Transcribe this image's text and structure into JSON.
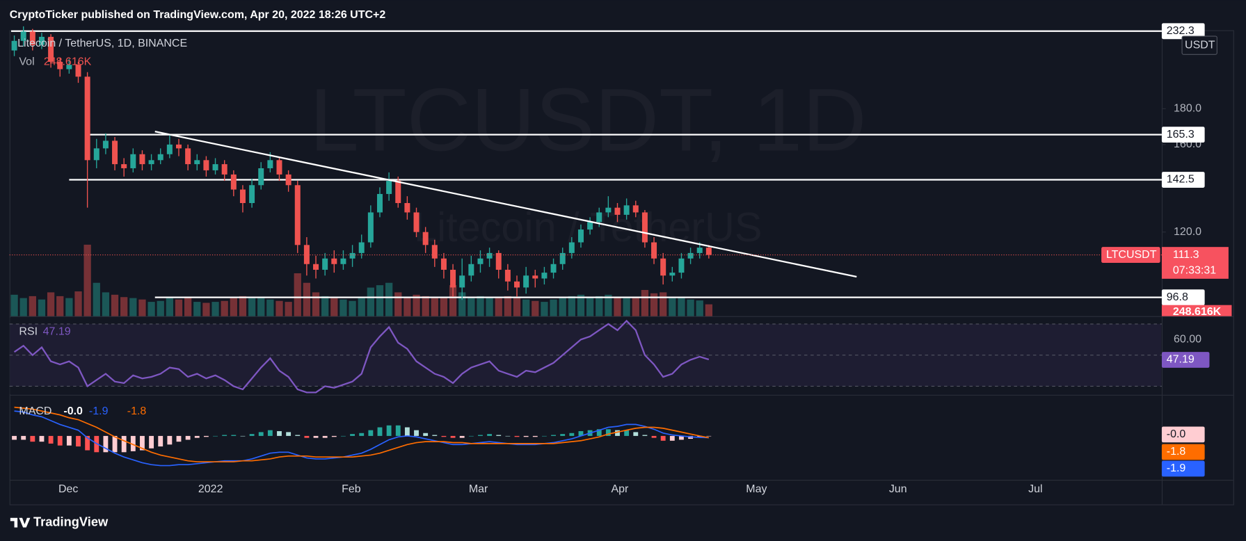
{
  "header": {
    "publisher": "CryptoTicker published on TradingView.com, Apr 20, 2022 18:26 UTC+2"
  },
  "footer": {
    "brand": "TradingView"
  },
  "chart_data": [
    {
      "type": "candlestick",
      "title": "Litecoin / TetherUS, 1D, BINANCE",
      "watermark": "LTCUSDT, 1D",
      "watermark_subtitle": "Litecoin / TetherUS",
      "currency": "USDT",
      "log_scale": true,
      "ylim": [
        91,
        233
      ],
      "yticks": [
        {
          "value": 120,
          "label": "120.0"
        },
        {
          "value": 160,
          "label": "160.0"
        },
        {
          "value": 180,
          "label": "180.0"
        }
      ],
      "x_labels": [
        "Dec",
        "2022",
        "Feb",
        "Mar",
        "Apr",
        "May",
        "Jun",
        "Jul"
      ],
      "up_color": "#26a69a",
      "down_color": "#ef5350",
      "open": [
        218,
        225,
        232,
        222,
        228,
        210,
        205,
        208,
        200,
        152,
        158,
        162,
        150,
        148,
        155,
        150,
        152,
        155,
        160,
        158,
        150,
        152,
        147,
        150,
        145,
        138,
        132,
        140,
        148,
        152,
        145,
        140,
        115,
        108,
        106,
        110,
        108,
        110,
        112,
        116,
        128,
        136,
        142,
        132,
        128,
        120,
        115,
        110,
        106,
        100,
        104,
        108,
        110,
        112,
        106,
        102,
        100,
        104,
        103,
        105,
        108,
        112,
        116,
        121,
        124,
        128,
        130,
        127,
        131,
        128,
        116,
        110,
        104,
        105,
        110,
        112,
        114
      ],
      "high": [
        229,
        236,
        234,
        231,
        230,
        213,
        212,
        210,
        203,
        163,
        166,
        164,
        153,
        158,
        157,
        155,
        158,
        165,
        163,
        160,
        155,
        154,
        153,
        152,
        147,
        140,
        143,
        151,
        156,
        153,
        147,
        142,
        118,
        111,
        112,
        113,
        113,
        115,
        119,
        131,
        139,
        146,
        144,
        135,
        130,
        122,
        117,
        112,
        108,
        110,
        111,
        113,
        114,
        113,
        108,
        104,
        107,
        106,
        107,
        110,
        114,
        118,
        123,
        126,
        130,
        135,
        132,
        134,
        133,
        129,
        118,
        112,
        107,
        112,
        114,
        116,
        115
      ],
      "low": [
        214,
        221,
        218,
        219,
        206,
        200,
        202,
        196,
        130,
        148,
        155,
        147,
        144,
        146,
        147,
        147,
        150,
        153,
        154,
        147,
        147,
        144,
        145,
        142,
        135,
        128,
        130,
        138,
        146,
        142,
        137,
        112,
        104,
        103,
        104,
        105,
        106,
        107,
        110,
        114,
        126,
        133,
        130,
        125,
        118,
        112,
        107,
        103,
        97,
        96,
        102,
        105,
        107,
        103,
        99,
        97,
        98,
        100,
        101,
        103,
        106,
        110,
        114,
        119,
        122,
        126,
        124,
        125,
        126,
        114,
        108,
        101,
        102,
        103,
        108,
        110,
        110
      ],
      "close": [
        225,
        232,
        222,
        228,
        210,
        205,
        208,
        200,
        152,
        158,
        162,
        150,
        148,
        155,
        150,
        152,
        155,
        160,
        158,
        150,
        152,
        147,
        150,
        145,
        138,
        132,
        140,
        148,
        152,
        145,
        140,
        115,
        108,
        106,
        110,
        108,
        110,
        112,
        116,
        128,
        136,
        142,
        132,
        128,
        120,
        115,
        110,
        106,
        100,
        104,
        108,
        110,
        112,
        106,
        102,
        100,
        104,
        103,
        105,
        108,
        112,
        116,
        121,
        124,
        128,
        130,
        127,
        131,
        128,
        116,
        110,
        104,
        105,
        110,
        112,
        114,
        111.3
      ],
      "levels": [
        232.3,
        165.3,
        142.5,
        96.8
      ],
      "trendline": [
        167,
        103.6
      ],
      "symbol": "LTCUSDT",
      "last_price": 111.3,
      "countdown": "07:33:31",
      "volume": {
        "name": "Vol",
        "last_label": "248.616K",
        "values": [
          450,
          380,
          420,
          350,
          500,
          420,
          380,
          520,
          1500,
          700,
          500,
          450,
          400,
          380,
          350,
          300,
          320,
          380,
          350,
          400,
          300,
          280,
          300,
          320,
          380,
          420,
          380,
          400,
          350,
          320,
          300,
          900,
          700,
          500,
          420,
          380,
          350,
          320,
          380,
          600,
          650,
          700,
          500,
          400,
          450,
          420,
          380,
          400,
          650,
          500,
          380,
          420,
          400,
          380,
          420,
          400,
          350,
          320,
          300,
          350,
          380,
          420,
          450,
          400,
          420,
          450,
          400,
          380,
          400,
          550,
          480,
          500,
          380,
          400,
          350,
          330,
          248.616
        ]
      }
    },
    {
      "type": "line",
      "title": "RSI",
      "ylim": [
        25,
        74
      ],
      "yticks": [
        {
          "value": 60,
          "label": "60.00"
        }
      ],
      "bands": [
        30,
        50,
        70
      ],
      "series": [
        {
          "color": "#7e57c2",
          "values": [
            52,
            56,
            50,
            55,
            46,
            44,
            46,
            42,
            30,
            34,
            38,
            33,
            32,
            37,
            35,
            36,
            38,
            42,
            41,
            36,
            38,
            35,
            37,
            34,
            30,
            28,
            35,
            42,
            48,
            40,
            36,
            28,
            26,
            26,
            30,
            29,
            31,
            33,
            38,
            55,
            62,
            68,
            58,
            54,
            46,
            42,
            38,
            36,
            32,
            38,
            42,
            44,
            46,
            40,
            38,
            36,
            40,
            39,
            42,
            45,
            50,
            55,
            60,
            62,
            66,
            70,
            66,
            72,
            66,
            50,
            44,
            36,
            38,
            44,
            47,
            49,
            47.19
          ]
        }
      ]
    },
    {
      "type": "macd",
      "title": "MACD",
      "ylim": [
        -45,
        38
      ],
      "histogram": {
        "last_label": "-0.0",
        "values": [
          -4,
          -4,
          -6,
          -6,
          -8,
          -10,
          -10,
          -11,
          -15,
          -17,
          -17,
          -17,
          -17,
          -16,
          -15,
          -13,
          -11,
          -9,
          -6,
          -4,
          -2,
          -1,
          0,
          1,
          1,
          0,
          2,
          4,
          6,
          5,
          4,
          1,
          -2,
          -2,
          -2,
          -1,
          0,
          2,
          3,
          6,
          9,
          11,
          11,
          9,
          6,
          3,
          1,
          -1,
          -2,
          -2,
          0,
          1,
          2,
          1,
          0,
          -1,
          -1,
          -1,
          0,
          1,
          2,
          3,
          5,
          6,
          7,
          7,
          6,
          6,
          4,
          1,
          -2,
          -5,
          -5,
          -4,
          -3,
          -1.5,
          -0.02
        ]
      },
      "series": [
        {
          "color": "#2962ff",
          "last_label": "-1.9",
          "values": [
            26,
            25,
            22,
            20,
            16,
            12,
            9,
            6,
            -2,
            -8,
            -13,
            -18,
            -22,
            -25,
            -28,
            -30,
            -31,
            -31,
            -30,
            -30,
            -29,
            -28,
            -27,
            -26,
            -26,
            -26,
            -24,
            -21,
            -18,
            -17,
            -17,
            -20,
            -23,
            -24,
            -24,
            -23,
            -22,
            -20,
            -18,
            -14,
            -9,
            -4,
            -1,
            0,
            -1,
            -3,
            -5,
            -7,
            -9,
            -9,
            -8,
            -7,
            -6,
            -7,
            -8,
            -9,
            -9,
            -9,
            -8,
            -7,
            -5,
            -3,
            0,
            3,
            6,
            9,
            10,
            12,
            12,
            10,
            7,
            3,
            1,
            0,
            -1,
            -1.5,
            -1.86
          ]
        },
        {
          "color": "#ff6d00",
          "last_label": "-1.8",
          "values": [
            30,
            29,
            28,
            26,
            24,
            22,
            19,
            17,
            13,
            9,
            4,
            -1,
            -5,
            -9,
            -13,
            -17,
            -20,
            -22,
            -24,
            -26,
            -27,
            -27,
            -27,
            -27,
            -27,
            -26,
            -26,
            -25,
            -24,
            -22,
            -21,
            -21,
            -21,
            -22,
            -22,
            -22,
            -22,
            -22,
            -21,
            -20,
            -18,
            -15,
            -12,
            -9,
            -7,
            -6,
            -6,
            -6,
            -7,
            -7,
            -8,
            -8,
            -8,
            -8,
            -8,
            -8,
            -8,
            -8,
            -8,
            -8,
            -7,
            -6,
            -5,
            -3,
            -1,
            2,
            4,
            6,
            8,
            9,
            9,
            8,
            6,
            4,
            2,
            0,
            -1.84
          ]
        }
      ]
    }
  ]
}
